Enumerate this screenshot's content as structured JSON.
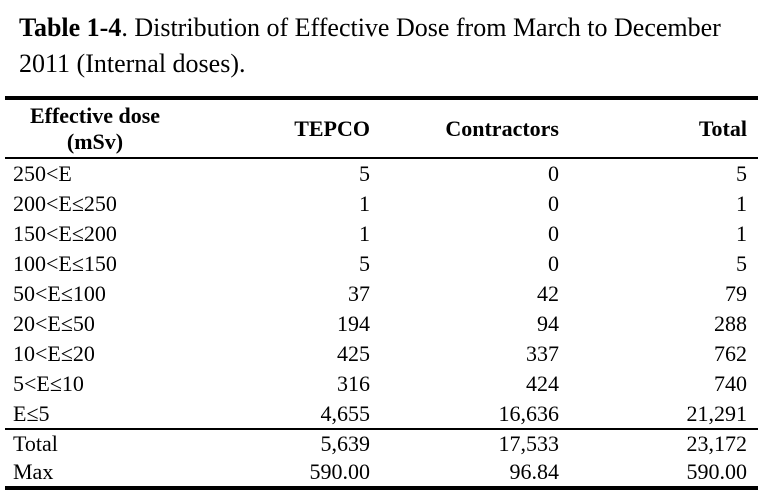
{
  "caption": {
    "label": "Table 1-4",
    "text": ". Distribution of Effective Dose from March to December 2011 (Internal doses)."
  },
  "table": {
    "headers": {
      "dose_line1": "Effective dose",
      "dose_line2": "(mSv)",
      "tepco": "TEPCO",
      "contractors": "Contractors",
      "total": "Total"
    },
    "rows": [
      {
        "range": "250<E",
        "tepco": "5",
        "contractors": "0",
        "total": "5"
      },
      {
        "range": "200<E≤250",
        "tepco": "1",
        "contractors": "0",
        "total": "1"
      },
      {
        "range": "150<E≤200",
        "tepco": "1",
        "contractors": "0",
        "total": "1"
      },
      {
        "range": "100<E≤150",
        "tepco": "5",
        "contractors": "0",
        "total": "5"
      },
      {
        "range": "50<E≤100",
        "tepco": "37",
        "contractors": "42",
        "total": "79"
      },
      {
        "range": "20<E≤50",
        "tepco": "194",
        "contractors": "94",
        "total": "288"
      },
      {
        "range": "10<E≤20",
        "tepco": "425",
        "contractors": "337",
        "total": "762"
      },
      {
        "range": "5<E≤10",
        "tepco": "316",
        "contractors": "424",
        "total": "740"
      },
      {
        "range": "E≤5",
        "tepco": "4,655",
        "contractors": "16,636",
        "total": "21,291"
      }
    ],
    "summary": [
      {
        "range": "Total",
        "tepco": "5,639",
        "contractors": "17,533",
        "total": "23,172"
      },
      {
        "range": "Max",
        "tepco": "590.00",
        "contractors": "96.84",
        "total": "590.00"
      }
    ]
  }
}
